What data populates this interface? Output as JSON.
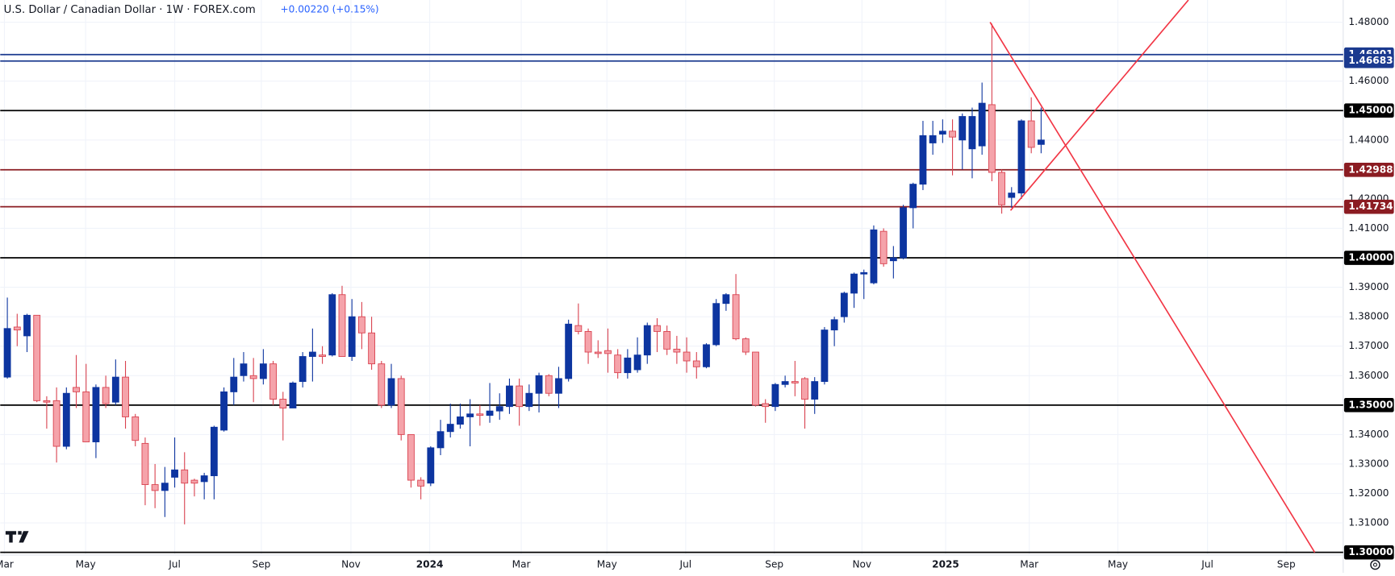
{
  "chart_data": {
    "type": "candlestick",
    "title": "U.S. Dollar / Canadian Dollar · 1W · FOREX.com",
    "change": "+0.00220 (+0.15%)",
    "up_color": "#0d35a0",
    "down_color": "#f5a3aa",
    "ylim": [
      1.3,
      1.48
    ],
    "yticks": [
      {
        "value": 1.48,
        "label": "1.48000"
      },
      {
        "value": 1.46,
        "label": "1.46000"
      },
      {
        "value": 1.44,
        "label": "1.44000"
      },
      {
        "value": 1.42,
        "label": "1.42000"
      },
      {
        "value": 1.41,
        "label": "1.41000"
      },
      {
        "value": 1.39,
        "label": "1.39000"
      },
      {
        "value": 1.38,
        "label": "1.38000"
      },
      {
        "value": 1.37,
        "label": "1.37000"
      },
      {
        "value": 1.36,
        "label": "1.36000"
      },
      {
        "value": 1.34,
        "label": "1.34000"
      },
      {
        "value": 1.33,
        "label": "1.33000"
      },
      {
        "value": 1.32,
        "label": "1.32000"
      },
      {
        "value": 1.31,
        "label": "1.31000"
      }
    ],
    "xticks": [
      {
        "value": -0.3,
        "label": "Mar"
      },
      {
        "value": 7.95,
        "label": "May"
      },
      {
        "value": 17,
        "label": "Jul"
      },
      {
        "value": 25.8,
        "label": "Sep"
      },
      {
        "value": 34.9,
        "label": "Nov"
      },
      {
        "value": 42.9,
        "label": "2024"
      },
      {
        "value": 52.2,
        "label": "Mar"
      },
      {
        "value": 60.9,
        "label": "May"
      },
      {
        "value": 68.9,
        "label": "Jul"
      },
      {
        "value": 77.9,
        "label": "Sep"
      },
      {
        "value": 86.8,
        "label": "Nov"
      },
      {
        "value": 95.3,
        "label": "2025"
      },
      {
        "value": 103.8,
        "label": "Mar"
      },
      {
        "value": 112.8,
        "label": "May"
      },
      {
        "value": 121.9,
        "label": "Jul"
      },
      {
        "value": 129.9,
        "label": "Sep"
      }
    ],
    "levels": [
      {
        "value": 1.46901,
        "label": "1.46901",
        "color": "#1b3a8f"
      },
      {
        "value": 1.46683,
        "label": "1.46683",
        "color": "#1b3a8f"
      },
      {
        "value": 1.45,
        "label": "1.45000",
        "color": "#000000"
      },
      {
        "value": 1.42988,
        "label": "1.42988",
        "color": "#8b1c22"
      },
      {
        "value": 1.41734,
        "label": "1.41734",
        "color": "#8b1c22"
      },
      {
        "value": 1.4,
        "label": "1.40000",
        "color": "#000000"
      },
      {
        "value": 1.35,
        "label": "1.35000",
        "color": "#000000"
      },
      {
        "value": 1.3,
        "label": "1.30000",
        "color": "#000000"
      }
    ],
    "candles": [
      [
        1.3595,
        1.3865,
        1.359,
        1.376
      ],
      [
        1.3765,
        1.381,
        1.37,
        1.3755
      ],
      [
        1.3735,
        1.381,
        1.368,
        1.3805
      ],
      [
        1.3805,
        1.3805,
        1.351,
        1.3515
      ],
      [
        1.3515,
        1.353,
        1.342,
        1.351
      ],
      [
        1.3515,
        1.356,
        1.3305,
        1.336
      ],
      [
        1.336,
        1.356,
        1.335,
        1.354
      ],
      [
        1.356,
        1.367,
        1.349,
        1.3545
      ],
      [
        1.3545,
        1.364,
        1.3375,
        1.3375
      ],
      [
        1.3375,
        1.357,
        1.332,
        1.356
      ],
      [
        1.356,
        1.36,
        1.349,
        1.3505
      ],
      [
        1.351,
        1.3655,
        1.35,
        1.3595
      ],
      [
        1.3595,
        1.365,
        1.342,
        1.346
      ],
      [
        1.346,
        1.347,
        1.336,
        1.338
      ],
      [
        1.337,
        1.339,
        1.316,
        1.323
      ],
      [
        1.323,
        1.33,
        1.315,
        1.321
      ],
      [
        1.321,
        1.329,
        1.312,
        1.3235
      ],
      [
        1.3255,
        1.339,
        1.322,
        1.328
      ],
      [
        1.328,
        1.334,
        1.3095,
        1.3235
      ],
      [
        1.3245,
        1.325,
        1.319,
        1.3235
      ],
      [
        1.324,
        1.327,
        1.318,
        1.326
      ],
      [
        1.326,
        1.343,
        1.318,
        1.3425
      ],
      [
        1.3415,
        1.356,
        1.341,
        1.3545
      ],
      [
        1.3545,
        1.366,
        1.35,
        1.3595
      ],
      [
        1.36,
        1.368,
        1.358,
        1.364
      ],
      [
        1.36,
        1.366,
        1.351,
        1.359
      ],
      [
        1.359,
        1.369,
        1.357,
        1.364
      ],
      [
        1.364,
        1.365,
        1.35,
        1.352
      ],
      [
        1.352,
        1.3545,
        1.338,
        1.349
      ],
      [
        1.349,
        1.358,
        1.349,
        1.3575
      ],
      [
        1.358,
        1.368,
        1.356,
        1.3665
      ],
      [
        1.3665,
        1.376,
        1.358,
        1.368
      ],
      [
        1.367,
        1.37,
        1.364,
        1.3665
      ],
      [
        1.367,
        1.388,
        1.3665,
        1.3875
      ],
      [
        1.3875,
        1.3905,
        1.3665,
        1.3665
      ],
      [
        1.3665,
        1.386,
        1.365,
        1.38
      ],
      [
        1.38,
        1.385,
        1.369,
        1.3745
      ],
      [
        1.3745,
        1.38,
        1.362,
        1.364
      ],
      [
        1.364,
        1.365,
        1.349,
        1.35
      ],
      [
        1.35,
        1.364,
        1.349,
        1.359
      ],
      [
        1.359,
        1.36,
        1.338,
        1.34
      ],
      [
        1.34,
        1.34,
        1.322,
        1.3245
      ],
      [
        1.3245,
        1.3255,
        1.318,
        1.3225
      ],
      [
        1.3235,
        1.336,
        1.3225,
        1.3355
      ],
      [
        1.3355,
        1.345,
        1.333,
        1.341
      ],
      [
        1.341,
        1.3505,
        1.339,
        1.3435
      ],
      [
        1.3435,
        1.3505,
        1.342,
        1.346
      ],
      [
        1.346,
        1.352,
        1.336,
        1.347
      ],
      [
        1.347,
        1.35,
        1.343,
        1.3465
      ],
      [
        1.3465,
        1.3575,
        1.344,
        1.348
      ],
      [
        1.348,
        1.354,
        1.345,
        1.3495
      ],
      [
        1.3495,
        1.359,
        1.347,
        1.3565
      ],
      [
        1.3565,
        1.359,
        1.343,
        1.3495
      ],
      [
        1.3495,
        1.357,
        1.348,
        1.354
      ],
      [
        1.354,
        1.361,
        1.3475,
        1.36
      ],
      [
        1.36,
        1.3605,
        1.353,
        1.354
      ],
      [
        1.354,
        1.363,
        1.349,
        1.359
      ],
      [
        1.359,
        1.379,
        1.358,
        1.3775
      ],
      [
        1.377,
        1.3845,
        1.374,
        1.375
      ],
      [
        1.375,
        1.376,
        1.364,
        1.368
      ],
      [
        1.368,
        1.372,
        1.366,
        1.3675
      ],
      [
        1.3685,
        1.376,
        1.361,
        1.3675
      ],
      [
        1.367,
        1.369,
        1.359,
        1.361
      ],
      [
        1.361,
        1.369,
        1.359,
        1.366
      ],
      [
        1.362,
        1.373,
        1.361,
        1.367
      ],
      [
        1.367,
        1.378,
        1.364,
        1.377
      ],
      [
        1.377,
        1.3795,
        1.368,
        1.375
      ],
      [
        1.375,
        1.377,
        1.367,
        1.369
      ],
      [
        1.369,
        1.3735,
        1.364,
        1.368
      ],
      [
        1.368,
        1.373,
        1.361,
        1.365
      ],
      [
        1.365,
        1.368,
        1.359,
        1.363
      ],
      [
        1.363,
        1.371,
        1.3625,
        1.3705
      ],
      [
        1.3705,
        1.386,
        1.37,
        1.3845
      ],
      [
        1.3845,
        1.388,
        1.382,
        1.3875
      ],
      [
        1.3875,
        1.3945,
        1.372,
        1.3725
      ],
      [
        1.3725,
        1.373,
        1.367,
        1.368
      ],
      [
        1.368,
        1.368,
        1.3495,
        1.35
      ],
      [
        1.3505,
        1.352,
        1.344,
        1.3495
      ],
      [
        1.3495,
        1.3575,
        1.348,
        1.357
      ],
      [
        1.357,
        1.36,
        1.356,
        1.358
      ],
      [
        1.358,
        1.365,
        1.353,
        1.3575
      ],
      [
        1.359,
        1.3595,
        1.342,
        1.352
      ],
      [
        1.352,
        1.3595,
        1.347,
        1.358
      ],
      [
        1.358,
        1.3765,
        1.357,
        1.3755
      ],
      [
        1.3755,
        1.38,
        1.37,
        1.379
      ],
      [
        1.38,
        1.3885,
        1.378,
        1.388
      ],
      [
        1.388,
        1.395,
        1.383,
        1.3945
      ],
      [
        1.3945,
        1.396,
        1.386,
        1.395
      ],
      [
        1.3915,
        1.411,
        1.391,
        1.4095
      ],
      [
        1.409,
        1.41,
        1.397,
        1.398
      ],
      [
        1.399,
        1.404,
        1.393,
        1.4
      ],
      [
        1.4,
        1.418,
        1.3995,
        1.417
      ],
      [
        1.417,
        1.4255,
        1.41,
        1.425
      ],
      [
        1.425,
        1.4465,
        1.423,
        1.4415
      ],
      [
        1.439,
        1.4465,
        1.435,
        1.4415
      ],
      [
        1.442,
        1.447,
        1.439,
        1.443
      ],
      [
        1.443,
        1.447,
        1.428,
        1.441
      ],
      [
        1.44,
        1.449,
        1.43,
        1.448
      ],
      [
        1.437,
        1.451,
        1.427,
        1.448
      ],
      [
        1.438,
        1.4595,
        1.435,
        1.4525
      ],
      [
        1.452,
        1.4795,
        1.426,
        1.429
      ],
      [
        1.429,
        1.43,
        1.415,
        1.418
      ],
      [
        1.4205,
        1.424,
        1.417,
        1.422
      ],
      [
        1.422,
        1.447,
        1.42,
        1.4465
      ],
      [
        1.4465,
        1.4545,
        1.4355,
        1.4375
      ],
      [
        1.4385,
        1.451,
        1.4355,
        1.44
      ]
    ]
  }
}
